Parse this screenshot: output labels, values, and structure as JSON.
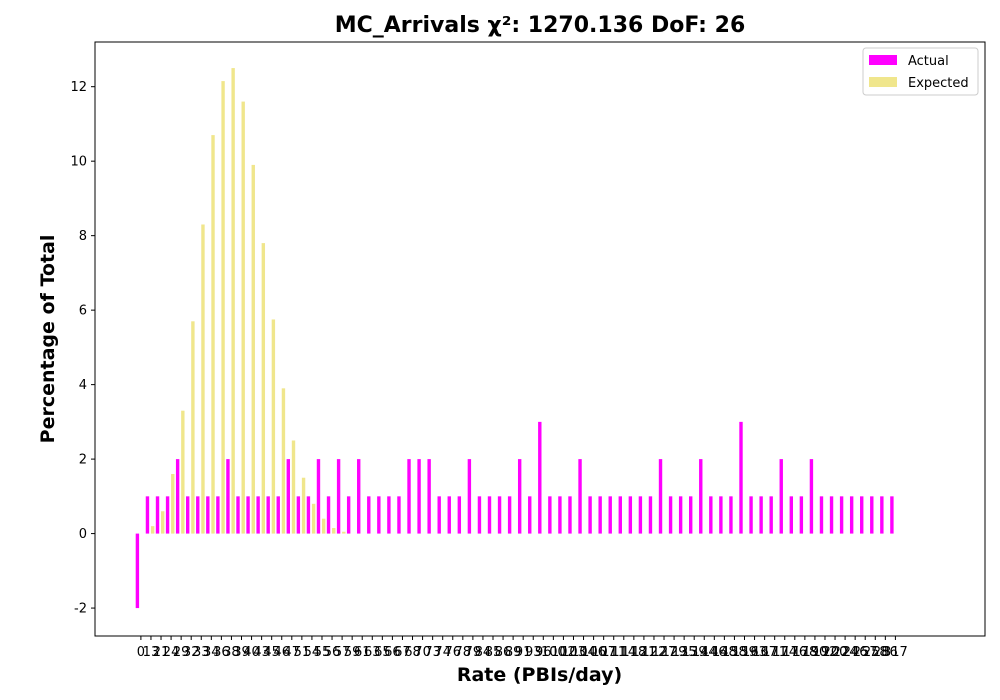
{
  "chart_data": {
    "type": "bar",
    "title": "MC_Arrivals χ²: 1270.136 DoF: 26",
    "xlabel": "Rate (PBIs/day)",
    "ylabel": "Percentage of Total",
    "ylim": [
      -2.75,
      13.2
    ],
    "yticks": [
      "-2",
      "0",
      "2",
      "4",
      "6",
      "8",
      "10",
      "12"
    ],
    "ytick_values": [
      -2,
      0,
      2,
      4,
      6,
      8,
      10,
      12
    ],
    "categories": [
      "0",
      "13",
      "21",
      "24",
      "29",
      "32",
      "33",
      "34",
      "36",
      "38",
      "39",
      "40",
      "43",
      "45",
      "46",
      "47",
      "51",
      "54",
      "55",
      "56",
      "57",
      "59",
      "61",
      "63",
      "65",
      "66",
      "67",
      "68",
      "70",
      "73",
      "74",
      "76",
      "78",
      "79",
      "84",
      "85",
      "86",
      "89",
      "91",
      "93",
      "96",
      "100",
      "102",
      "103",
      "104",
      "106",
      "107",
      "111",
      "114",
      "118",
      "121",
      "122",
      "127",
      "129",
      "135",
      "139",
      "144",
      "146",
      "148",
      "158",
      "159",
      "163",
      "167",
      "171",
      "174",
      "176",
      "178",
      "190",
      "192",
      "200",
      "224",
      "246",
      "257",
      "258",
      "286",
      "317"
    ],
    "series": [
      {
        "name": "Actual",
        "color": "#ff00ff",
        "values": [
          -2,
          1,
          1,
          1,
          2,
          1,
          1,
          1,
          1,
          2,
          1,
          1,
          1,
          1,
          1,
          2,
          1,
          1,
          2,
          1,
          2,
          1,
          2,
          1,
          1,
          1,
          1,
          2,
          2,
          2,
          1,
          1,
          1,
          2,
          1,
          1,
          1,
          1,
          2,
          1,
          3,
          1,
          1,
          1,
          2,
          1,
          1,
          1,
          1,
          1,
          1,
          1,
          2,
          1,
          1,
          1,
          2,
          1,
          1,
          1,
          3,
          1,
          1,
          1,
          2,
          1,
          1,
          2,
          1,
          1,
          1,
          1,
          1,
          1,
          1,
          1
        ]
      },
      {
        "name": "Expected",
        "color": "#f0e68c",
        "values": [
          0,
          0.2,
          0.6,
          1.6,
          3.3,
          5.7,
          8.3,
          10.7,
          12.15,
          12.5,
          11.6,
          9.9,
          7.8,
          5.75,
          3.9,
          2.5,
          1.5,
          0.8,
          0.4,
          0.15,
          0.05,
          0,
          0,
          0,
          0,
          0,
          0,
          0,
          0,
          0,
          0,
          0,
          0,
          0,
          0,
          0,
          0,
          0,
          0,
          0,
          0,
          0,
          0,
          0,
          0,
          0,
          0,
          0,
          0,
          0,
          0,
          0,
          0,
          0,
          0,
          0,
          0,
          0,
          0,
          0,
          0,
          0,
          0,
          0,
          0,
          0,
          0,
          0,
          0,
          0,
          0,
          0,
          0,
          0,
          0,
          0
        ]
      }
    ],
    "legend_position": "top-right",
    "grid": false
  }
}
